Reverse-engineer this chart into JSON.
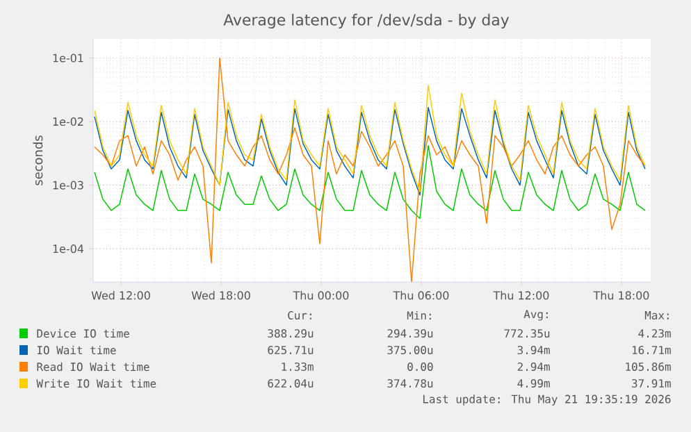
{
  "chart_data": {
    "type": "line",
    "title": "Average latency for /dev/sda - by day",
    "ylabel": "seconds",
    "log": "y",
    "grid": true,
    "legend": "bottom",
    "xlim": [
      "2026-05-20T10:20",
      "2026-05-21T19:45"
    ],
    "ylim": [
      3e-05,
      0.2
    ],
    "xticks": [
      {
        "value": "2026-05-20T12:00",
        "label": "Wed 12:00"
      },
      {
        "value": "2026-05-20T18:00",
        "label": "Wed 18:00"
      },
      {
        "value": "2026-05-21T00:00",
        "label": "Thu 00:00"
      },
      {
        "value": "2026-05-21T06:00",
        "label": "Thu 06:00"
      },
      {
        "value": "2026-05-21T12:00",
        "label": "Thu 12:00"
      },
      {
        "value": "2026-05-21T18:00",
        "label": "Thu 18:00"
      }
    ],
    "yticks": [
      {
        "value": 0.0001,
        "label": "1e-04"
      },
      {
        "value": 0.001,
        "label": "1e-03"
      },
      {
        "value": 0.01,
        "label": "1e-02"
      },
      {
        "value": 0.1,
        "label": "1e-01"
      }
    ],
    "x": [
      "2026-05-20T10:25",
      "2026-05-20T10:55",
      "2026-05-20T11:25",
      "2026-05-20T11:55",
      "2026-05-20T12:25",
      "2026-05-20T12:55",
      "2026-05-20T13:25",
      "2026-05-20T13:55",
      "2026-05-20T14:25",
      "2026-05-20T14:55",
      "2026-05-20T15:25",
      "2026-05-20T15:55",
      "2026-05-20T16:25",
      "2026-05-20T16:55",
      "2026-05-20T17:25",
      "2026-05-20T17:55",
      "2026-05-20T18:25",
      "2026-05-20T18:55",
      "2026-05-20T19:25",
      "2026-05-20T19:55",
      "2026-05-20T20:25",
      "2026-05-20T20:55",
      "2026-05-20T21:25",
      "2026-05-20T21:55",
      "2026-05-20T22:25",
      "2026-05-20T22:55",
      "2026-05-20T23:25",
      "2026-05-20T23:55",
      "2026-05-21T00:25",
      "2026-05-21T00:55",
      "2026-05-21T01:25",
      "2026-05-21T01:55",
      "2026-05-21T02:25",
      "2026-05-21T02:55",
      "2026-05-21T03:25",
      "2026-05-21T03:55",
      "2026-05-21T04:25",
      "2026-05-21T04:55",
      "2026-05-21T05:25",
      "2026-05-21T05:55",
      "2026-05-21T06:25",
      "2026-05-21T06:55",
      "2026-05-21T07:25",
      "2026-05-21T07:55",
      "2026-05-21T08:25",
      "2026-05-21T08:55",
      "2026-05-21T09:25",
      "2026-05-21T09:55",
      "2026-05-21T10:25",
      "2026-05-21T10:55",
      "2026-05-21T11:25",
      "2026-05-21T11:55",
      "2026-05-21T12:25",
      "2026-05-21T12:55",
      "2026-05-21T13:25",
      "2026-05-21T13:55",
      "2026-05-21T14:25",
      "2026-05-21T14:55",
      "2026-05-21T15:25",
      "2026-05-21T15:55",
      "2026-05-21T16:25",
      "2026-05-21T16:55",
      "2026-05-21T17:25",
      "2026-05-21T17:55",
      "2026-05-21T18:25",
      "2026-05-21T18:55",
      "2026-05-21T19:25"
    ],
    "series": [
      {
        "name": "Device IO time",
        "color": "#00cc00",
        "values": [
          0.0016,
          0.0006,
          0.0004,
          0.0005,
          0.0018,
          0.0007,
          0.0005,
          0.0004,
          0.0017,
          0.0006,
          0.0004,
          0.0004,
          0.0015,
          0.0006,
          0.0005,
          0.0004,
          0.0016,
          0.0007,
          0.0005,
          0.0005,
          0.0014,
          0.0006,
          0.0004,
          0.0005,
          0.0018,
          0.0007,
          0.0005,
          0.0004,
          0.0016,
          0.0006,
          0.0004,
          0.0004,
          0.0017,
          0.0007,
          0.0005,
          0.0004,
          0.0016,
          0.0006,
          0.0004,
          0.0003,
          0.0042,
          0.0008,
          0.0005,
          0.0004,
          0.0018,
          0.0007,
          0.0005,
          0.0004,
          0.0017,
          0.0006,
          0.0004,
          0.0004,
          0.0016,
          0.0007,
          0.0005,
          0.0004,
          0.0017,
          0.0006,
          0.0004,
          0.0005,
          0.0015,
          0.0006,
          0.0005,
          0.0004,
          0.0016,
          0.0005,
          0.0004
        ]
      },
      {
        "name": "IO Wait time",
        "color": "#0066b3",
        "values": [
          0.012,
          0.0035,
          0.0018,
          0.0025,
          0.015,
          0.005,
          0.0025,
          0.0018,
          0.014,
          0.004,
          0.002,
          0.0013,
          0.013,
          0.0035,
          0.0018,
          0.001,
          0.0155,
          0.005,
          0.0025,
          0.002,
          0.011,
          0.0035,
          0.0016,
          0.001,
          0.016,
          0.0045,
          0.0025,
          0.0018,
          0.013,
          0.0035,
          0.002,
          0.0013,
          0.014,
          0.005,
          0.0025,
          0.0018,
          0.0155,
          0.0045,
          0.0016,
          0.0007,
          0.0167,
          0.005,
          0.0025,
          0.0018,
          0.016,
          0.006,
          0.0025,
          0.0013,
          0.015,
          0.0045,
          0.0018,
          0.001,
          0.014,
          0.005,
          0.0025,
          0.0013,
          0.015,
          0.0045,
          0.002,
          0.0015,
          0.013,
          0.0035,
          0.0018,
          0.001,
          0.014,
          0.0035,
          0.0018
        ]
      },
      {
        "name": "Read IO Wait time",
        "color": "#ff8000",
        "values": [
          0.004,
          0.003,
          0.002,
          0.005,
          0.006,
          0.002,
          0.004,
          0.0015,
          0.005,
          0.003,
          0.0012,
          0.0025,
          0.004,
          0.002,
          6e-05,
          0.1,
          0.005,
          0.003,
          0.002,
          0.004,
          0.006,
          0.0025,
          0.0015,
          0.003,
          0.008,
          0.003,
          0.002,
          0.00012,
          0.005,
          0.0015,
          0.003,
          0.002,
          0.007,
          0.004,
          0.002,
          0.003,
          0.005,
          0.002,
          3e-05,
          0.0015,
          0.006,
          0.003,
          0.004,
          0.002,
          0.005,
          0.003,
          0.002,
          0.00025,
          0.006,
          0.004,
          0.002,
          0.003,
          0.005,
          0.0025,
          0.0015,
          0.004,
          0.006,
          0.003,
          0.002,
          0.003,
          0.004,
          0.002,
          0.0002,
          0.0005,
          0.005,
          0.003,
          0.002
        ]
      },
      {
        "name": "Write IO Wait time",
        "color": "#ffcc00",
        "values": [
          0.015,
          0.004,
          0.002,
          0.003,
          0.02,
          0.006,
          0.003,
          0.002,
          0.018,
          0.005,
          0.0025,
          0.0015,
          0.016,
          0.004,
          0.002,
          0.001,
          0.02,
          0.006,
          0.003,
          0.0025,
          0.013,
          0.004,
          0.0018,
          0.0012,
          0.022,
          0.005,
          0.003,
          0.002,
          0.016,
          0.004,
          0.0025,
          0.0015,
          0.018,
          0.006,
          0.003,
          0.002,
          0.02,
          0.005,
          0.0018,
          0.0008,
          0.037,
          0.006,
          0.003,
          0.002,
          0.028,
          0.007,
          0.003,
          0.0015,
          0.022,
          0.005,
          0.002,
          0.0012,
          0.018,
          0.006,
          0.003,
          0.0015,
          0.02,
          0.005,
          0.0025,
          0.0018,
          0.016,
          0.004,
          0.002,
          0.0012,
          0.018,
          0.004,
          0.002
        ]
      }
    ],
    "annotations": [
      "Cur:",
      "Min:",
      "Avg:",
      "Max:",
      "388.29u",
      "294.39u",
      "772.35u",
      "4.23m",
      "625.71u",
      "375.00u",
      "3.94m",
      "16.71m",
      "1.33m",
      "0.00",
      "2.94m",
      "105.86m",
      "622.04u",
      "374.78u",
      "4.99m",
      "37.91m",
      "Last update: Thu May 21 19:35:19 2026"
    ]
  }
}
